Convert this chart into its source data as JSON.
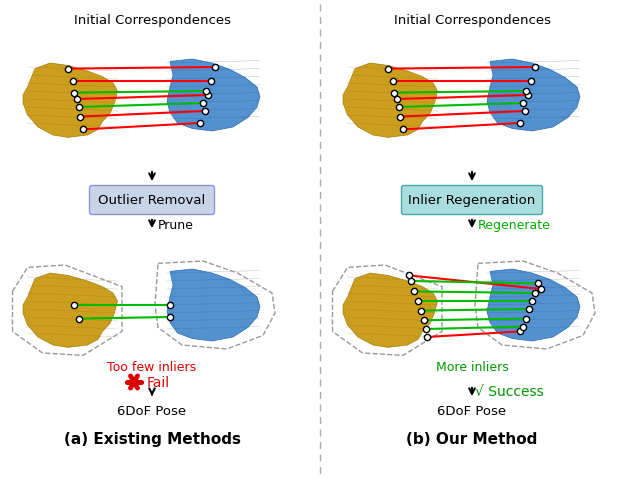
{
  "title_left": "Initial Correspondences",
  "title_right": "Initial Correspondences",
  "box_left": "Outlier Removal",
  "box_right": "Inlier Regeneration",
  "arrow_label_left": "Prune",
  "arrow_label_right": "Regenerate",
  "arrow_label_right_color": "#00aa00",
  "fail_text": "Too few inliers",
  "fail_color": "#dd0000",
  "success_text": "More inliers",
  "success_color": "#009900",
  "pose_text": "6DoF Pose",
  "caption_left": "(a) Existing Methods",
  "caption_right": "(b) Our Method",
  "bg_color": "#ffffff",
  "box_left_bg": "#c8d4e8",
  "box_right_bg": "#aadddd",
  "box_left_edge": "#8899cc",
  "box_right_edge": "#44aaaa",
  "red_line_color": "#ff0000",
  "green_line_color": "#00bb00",
  "divider_color": "#aaaaaa",
  "gold_color": "#c8960a",
  "blue_color": "#4488cc",
  "gold_dark": "#a07808",
  "blue_dark": "#2266aa"
}
